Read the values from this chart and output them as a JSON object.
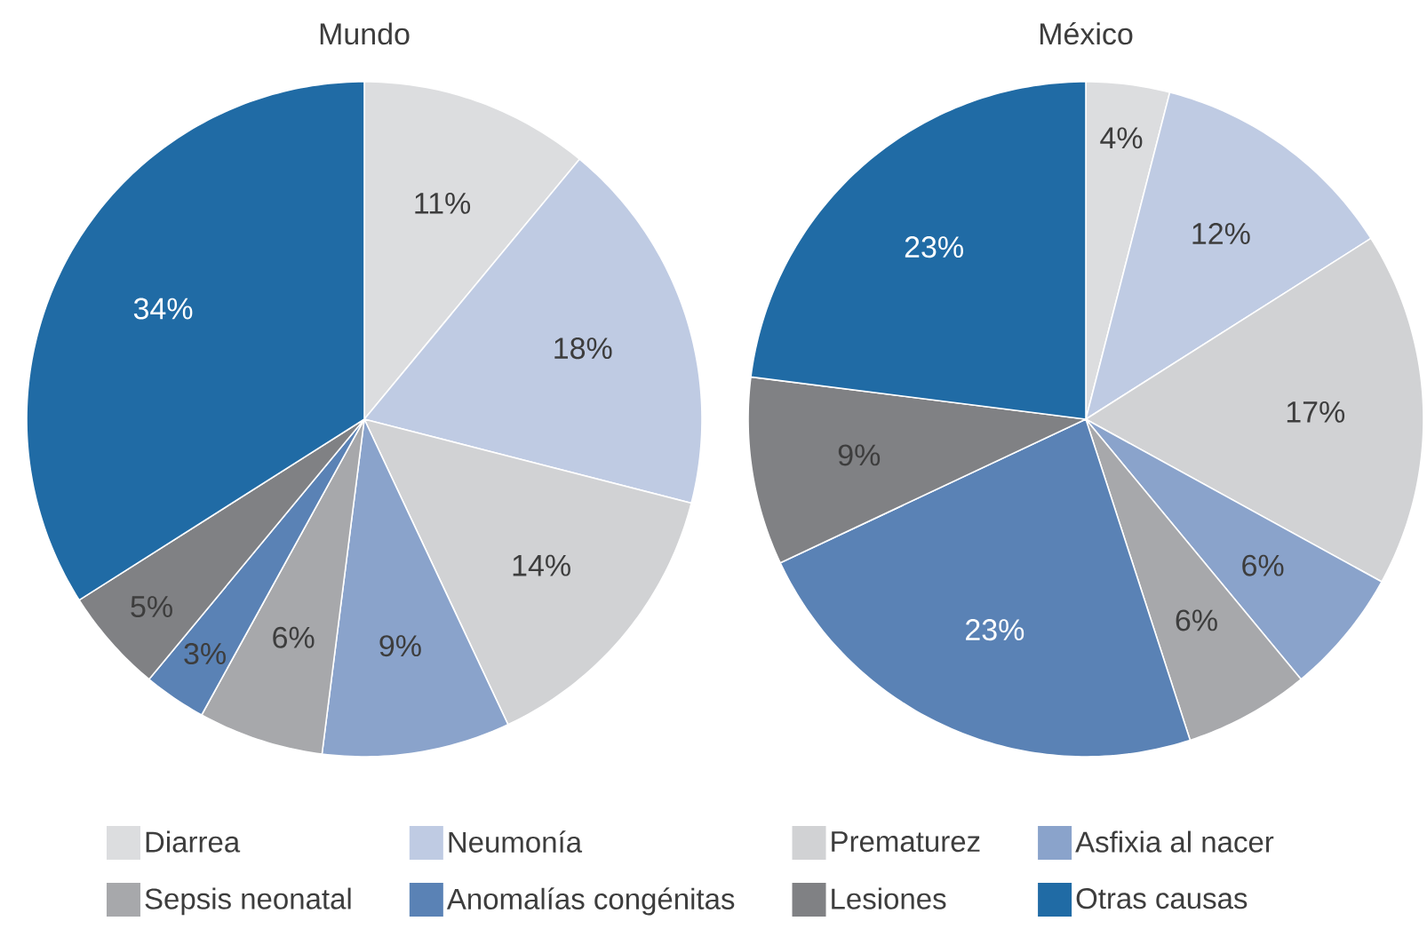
{
  "chart_data": [
    {
      "type": "pie",
      "title": "Mundo",
      "categories": [
        "Diarrea",
        "Neumonía",
        "Prematurez",
        "Asfixia al nacer",
        "Sepsis neonatal",
        "Anomalías congénitas",
        "Lesiones",
        "Otras causas"
      ],
      "values": [
        11,
        18,
        14,
        9,
        6,
        3,
        5,
        34
      ],
      "value_labels": [
        "11%",
        "18%",
        "14%",
        "9%",
        "6%",
        "3%",
        "5%",
        "34%"
      ],
      "colors": [
        "#dcdddf",
        "#bfcbe3",
        "#d1d2d4",
        "#8aa3cb",
        "#a7a8ab",
        "#5a82b5",
        "#808184",
        "#206ba5"
      ],
      "legend": "bottom"
    },
    {
      "type": "pie",
      "title": "México",
      "categories": [
        null,
        null,
        null,
        null,
        null,
        null,
        null,
        null
      ],
      "values": [
        4,
        12,
        17,
        6,
        6,
        23,
        9,
        23
      ],
      "value_labels": [
        "4%",
        "12%",
        "17%",
        "6%",
        "6%",
        "23%",
        "9%",
        "23%"
      ],
      "colors": [
        "#dcdddf",
        "#bfcbe3",
        "#d1d2d4",
        "#8aa3cb",
        "#a7a8ab",
        "#5a82b5",
        "#808184",
        "#206ba5"
      ]
    }
  ]
}
